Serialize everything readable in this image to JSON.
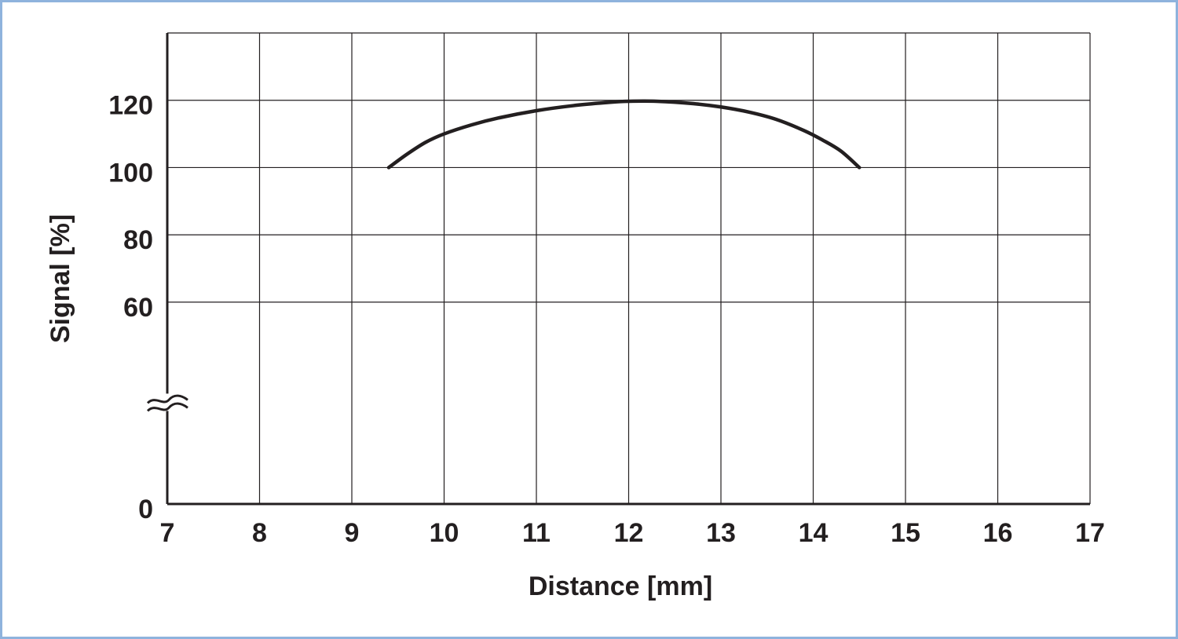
{
  "colors": {
    "frame_border": "#8fb3dd",
    "curve": "#231f20",
    "grid": "#231f20",
    "background": "#ffffff"
  },
  "chart_data": {
    "type": "line",
    "xlabel": "Distance [mm]",
    "ylabel": "Signal [%]",
    "xlim": [
      7,
      17
    ],
    "ylim": [
      0,
      140
    ],
    "x_ticks": [
      7,
      8,
      9,
      10,
      11,
      12,
      13,
      14,
      15,
      16,
      17
    ],
    "y_tick_labels": [
      "0",
      "60",
      "80",
      "100",
      "120"
    ],
    "y_axis_break": "≈",
    "grid": true,
    "series": [
      {
        "x": [
          9.4,
          9.6,
          9.8,
          10.0,
          10.3,
          10.6,
          11.0,
          11.4,
          11.8,
          12.0,
          12.3,
          12.7,
          13.0,
          13.3,
          13.6,
          13.9,
          14.1,
          14.3,
          14.5
        ],
        "y": [
          100,
          104,
          107.5,
          110,
          112.7,
          114.8,
          116.9,
          118.4,
          119.4,
          119.7,
          119.7,
          119.0,
          118.0,
          116.5,
          114.3,
          111.0,
          108.2,
          104.9,
          100
        ]
      }
    ]
  }
}
